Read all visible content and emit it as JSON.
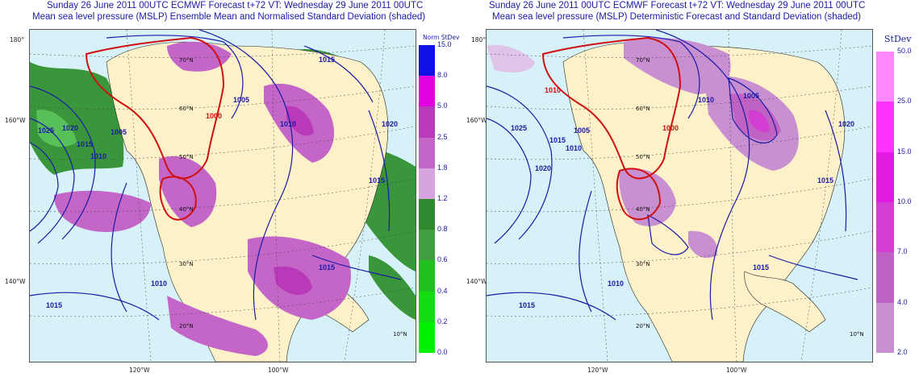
{
  "left": {
    "title_line1": "Sunday 26 June 2011 00UTC ECMWF Forecast t+72  VT: Wednesday 29 June 2011 00UTC",
    "title_line2": "Mean sea level pressure (MSLP) Ensemble Mean and Normalised Standard Deviation (shaded)",
    "legend_title": "Norm StDev",
    "legend": [
      {
        "label": "15.0",
        "color": "#1010e6"
      },
      {
        "label": "8.0",
        "color": "#e000e0"
      },
      {
        "label": "5.0",
        "color": "#b83ab8"
      },
      {
        "label": "2.5",
        "color": "#c466c8"
      },
      {
        "label": "1.8",
        "color": "#d8a4e0"
      },
      {
        "label": "1.2",
        "color": "#2f8a2f"
      },
      {
        "label": "0.8",
        "color": "#3f9f3f"
      },
      {
        "label": "0.6",
        "color": "#1fbf1f"
      },
      {
        "label": "0.4",
        "color": "#11dd11"
      },
      {
        "label": "0.2",
        "color": "#00f000"
      },
      {
        "label": "0.0",
        "color": ""
      }
    ],
    "lat_labels": [
      "70°N",
      "60°N",
      "50°N",
      "40°N",
      "30°N",
      "20°N",
      "10°N"
    ],
    "side_labels": [
      "180°",
      "160°W",
      "140°W"
    ],
    "bottom_labels": [
      "120°W",
      "100°W"
    ],
    "isobars": [
      "1015",
      "1005",
      "1010",
      "1000",
      "1025",
      "1020",
      "1015",
      "1010",
      "1005",
      "1015",
      "1020",
      "1010",
      "1015",
      "1015"
    ]
  },
  "right": {
    "title_line1": "Sunday 26 June 2011 00UTC ECMWF Forecast t+72  VT: Wednesday 29 June 2011 00UTC",
    "title_line2": "Mean sea level pressure (MSLP) Deterministic Forecast and Standard Deviation (shaded)",
    "legend_title": "StDev",
    "legend": [
      {
        "label": "50.0",
        "color": "#ff88ff"
      },
      {
        "label": "25.0",
        "color": "#ff33ff"
      },
      {
        "label": "15.0",
        "color": "#e21ae2"
      },
      {
        "label": "10.0",
        "color": "#d23ed2"
      },
      {
        "label": "7.0",
        "color": "#c062c4"
      },
      {
        "label": "4.0",
        "color": "#c890d0"
      },
      {
        "label": "2.0",
        "color": "#e0c4e8"
      }
    ],
    "lat_labels": [
      "70°N",
      "60°N",
      "50°N",
      "40°N",
      "30°N",
      "20°N",
      "10°N"
    ],
    "side_labels": [
      "180°",
      "160°W",
      "140°W"
    ],
    "bottom_labels": [
      "120°W",
      "100°W"
    ],
    "isobars": [
      "1010",
      "1000",
      "1005",
      "1025",
      "1020",
      "1015",
      "1010",
      "1005",
      "1010",
      "1015",
      "1020",
      "1015",
      "1010",
      "1015"
    ]
  },
  "colors": {
    "ocean": "#d7f1f8",
    "land": "#fdf1c9",
    "isobar": "#1a1aa6",
    "isobar_low": "#d01010",
    "title": "#1a1aa6"
  }
}
